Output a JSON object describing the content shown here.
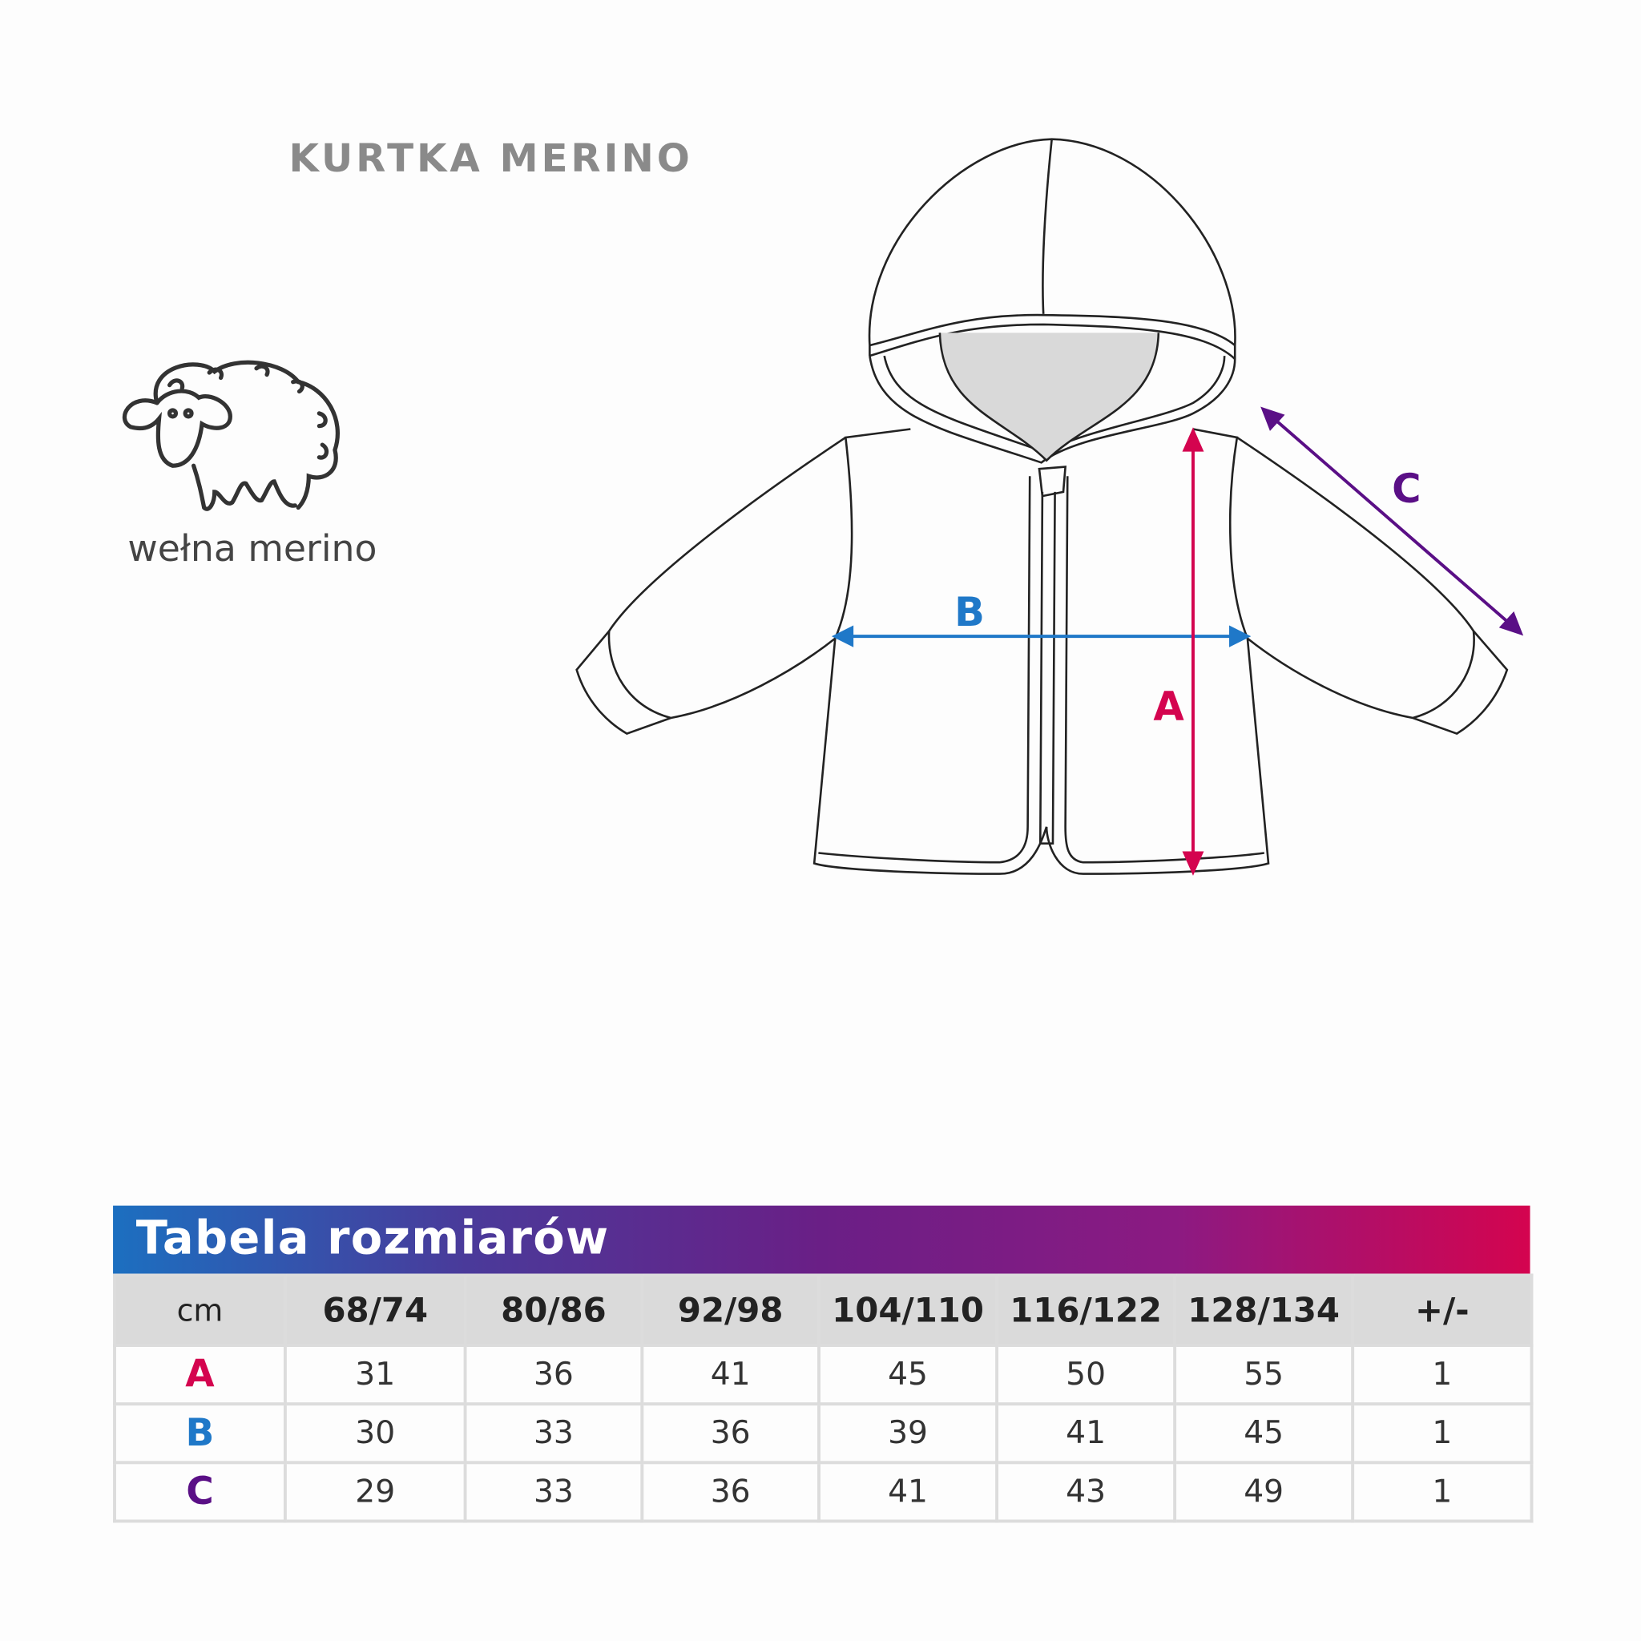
{
  "title": "KURTKA MERINO",
  "badge": {
    "icon": "sheep-icon",
    "label": "wełna merino"
  },
  "diagram": {
    "labels": {
      "A": "A",
      "B": "B",
      "C": "C"
    },
    "colors": {
      "A": "#d4044f",
      "B": "#1f78c8",
      "C": "#5a0f86"
    }
  },
  "table": {
    "title": "Tabela rozmiarów",
    "columns": [
      "cm",
      "68/74",
      "80/86",
      "92/98",
      "104/110",
      "116/122",
      "128/134",
      "+/-"
    ],
    "rows": [
      {
        "label": "A",
        "values": [
          "31",
          "36",
          "41",
          "45",
          "50",
          "55",
          "1"
        ]
      },
      {
        "label": "B",
        "values": [
          "30",
          "33",
          "36",
          "39",
          "41",
          "45",
          "1"
        ]
      },
      {
        "label": "C",
        "values": [
          "29",
          "33",
          "36",
          "41",
          "43",
          "49",
          "1"
        ]
      }
    ]
  }
}
